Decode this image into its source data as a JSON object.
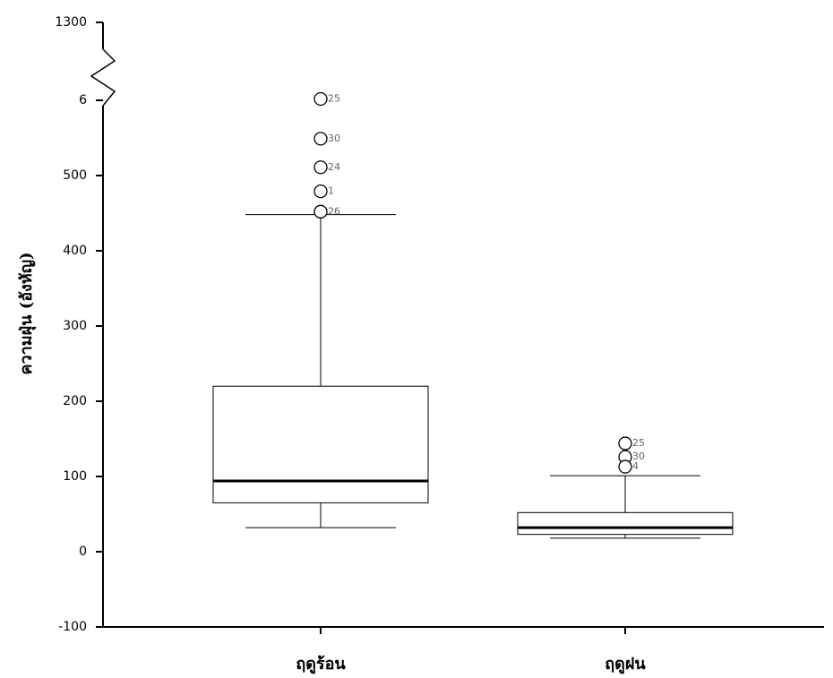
{
  "chart_data": {
    "type": "box",
    "y_label": "ความฝุ่น (อังหัญ)",
    "ylim": [
      -100,
      1300
    ],
    "yticks": [
      -100,
      0,
      100,
      200,
      300,
      400,
      500,
      {
        "value": 600,
        "label": "6"
      },
      1300
    ],
    "axis_break": true,
    "color": "#ffffff",
    "categories": [
      "ฤดูร้อน",
      "ฤดูฝน"
    ],
    "boxes": [
      {
        "whisker_low": 32,
        "q1": 65,
        "median": 94,
        "q3": 220,
        "whisker_high": 448,
        "outliers": [
          612,
          549,
          511,
          479,
          452
        ],
        "outlier_labels": [
          "25",
          "30",
          "24",
          "1",
          "26"
        ]
      },
      {
        "whisker_low": 18,
        "q1": 23,
        "median": 32,
        "q3": 52,
        "whisker_high": 101,
        "outliers": [
          144,
          126,
          113
        ],
        "outlier_labels": [
          "25",
          "30",
          "4"
        ]
      }
    ]
  }
}
